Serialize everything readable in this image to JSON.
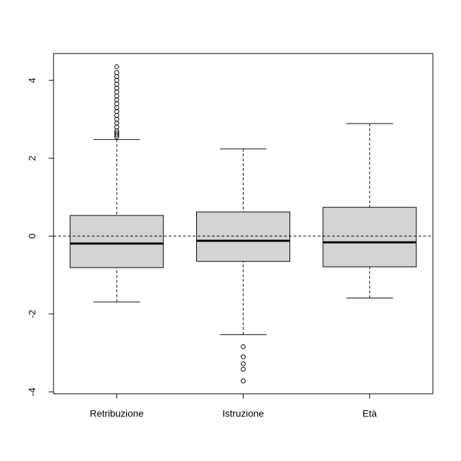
{
  "chart_data": {
    "type": "boxplot",
    "categories": [
      "Retribuzione",
      "Istruzione",
      "Età"
    ],
    "series": [
      {
        "name": "Retribuzione",
        "whisker_low": -1.69,
        "q1": -0.81,
        "median": -0.19,
        "q3": 0.53,
        "whisker_high": 2.48,
        "outliers": [
          2.55,
          2.6,
          2.65,
          2.7,
          2.8,
          2.9,
          3.0,
          3.1,
          3.2,
          3.3,
          3.4,
          3.5,
          3.6,
          3.7,
          3.8,
          3.9,
          4.0,
          4.1,
          4.2,
          4.35
        ]
      },
      {
        "name": "Istruzione",
        "whisker_low": -2.53,
        "q1": -0.65,
        "median": -0.12,
        "q3": 0.62,
        "whisker_high": 2.24,
        "outliers": [
          -2.84,
          -3.1,
          -3.28,
          -3.42,
          -3.72
        ]
      },
      {
        "name": "Età",
        "whisker_low": -1.59,
        "q1": -0.79,
        "median": -0.16,
        "q3": 0.74,
        "whisker_high": 2.89,
        "outliers": []
      }
    ],
    "box_color": "#d3d3d3",
    "hline": 0,
    "ylim": [
      -4.05,
      4.69
    ],
    "yticks": [
      -4,
      -2,
      0,
      2,
      4
    ]
  }
}
